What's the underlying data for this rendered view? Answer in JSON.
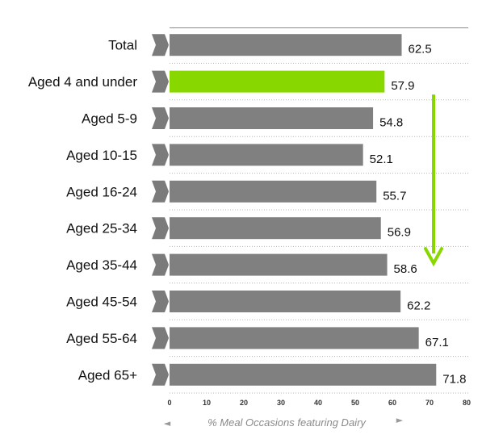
{
  "chart_data": {
    "type": "bar",
    "orientation": "horizontal",
    "categories": [
      "Total",
      "Aged 4 and under",
      "Aged 5-9",
      "Aged 10-15",
      "Aged 16-24",
      "Aged 25-34",
      "Aged 35-44",
      "Aged 45-54",
      "Aged 55-64",
      "Aged 65+"
    ],
    "values": [
      62.5,
      57.9,
      54.8,
      52.1,
      55.7,
      56.9,
      58.6,
      62.2,
      67.1,
      71.8
    ],
    "value_labels": [
      "62.5",
      "57.9",
      "54.8",
      "52.1",
      "55.7",
      "56.9",
      "58.6",
      "62.2",
      "67.1",
      "71.8"
    ],
    "highlight_index": 1,
    "xlabel": "% Meal Occasions featuring Dairy",
    "xlim": [
      0,
      80
    ],
    "xticks": [
      "0",
      "10",
      "20",
      "30",
      "40",
      "50",
      "60",
      "70",
      "80"
    ],
    "grid": "dotted row separators",
    "colors": {
      "bar": "#808080",
      "highlight": "#88d800",
      "trend_arrow": "#88d800",
      "label_chevron": "#7b7b7b"
    },
    "annotations": [
      {
        "kind": "trend-arrow",
        "direction": "down",
        "from_category": "Aged 4 and under",
        "to_category": "Aged 35-44"
      }
    ],
    "axis_arrows": {
      "left": "◄",
      "right": "►"
    }
  }
}
